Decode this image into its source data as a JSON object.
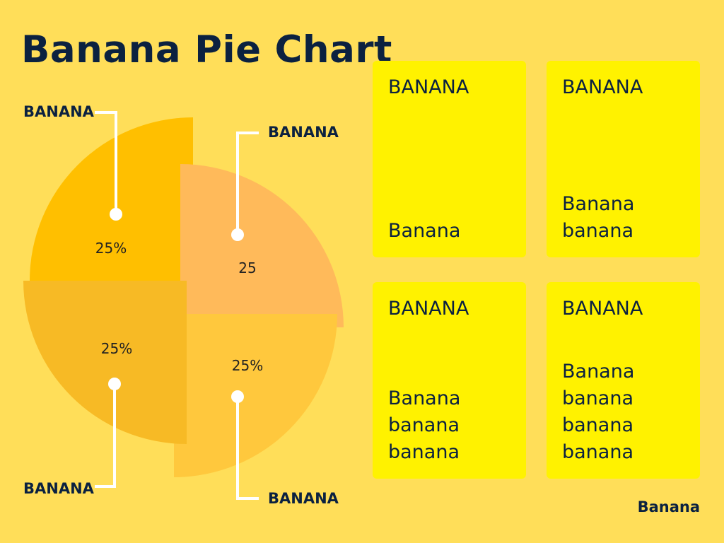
{
  "title": "Banana Pie Chart",
  "colors": {
    "background": "#FFDE59",
    "card": "#FFF200",
    "text": "#0B2140",
    "connector": "#FFFFFF"
  },
  "chart_data": {
    "type": "pie",
    "title": "Banana Pie Chart",
    "slices": [
      {
        "label": "BANANA",
        "value": 25,
        "value_label": "25%",
        "color": "#FFBF00"
      },
      {
        "label": "BANANA",
        "value": 25,
        "value_label": "25",
        "color": "#FFBA5A"
      },
      {
        "label": "BANANA",
        "value": 25,
        "value_label": "25%",
        "color": "#FFC83D"
      },
      {
        "label": "BANANA",
        "value": 25,
        "value_label": "25%",
        "color": "#F7BA25"
      }
    ]
  },
  "cards": [
    {
      "heading": "BANANA",
      "body": "Banana"
    },
    {
      "heading": "BANANA",
      "body": "Banana\nbanana"
    },
    {
      "heading": "BANANA",
      "body": "Banana\nbanana\nbanana"
    },
    {
      "heading": "BANANA",
      "body": "Banana\nbanana\nbanana\nbanana"
    }
  ],
  "footer": "Banana"
}
